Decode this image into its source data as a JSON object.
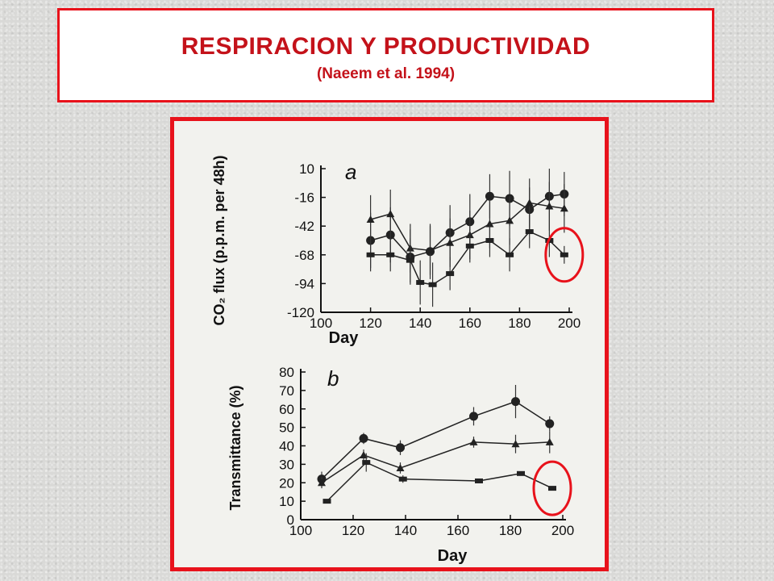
{
  "header": {
    "title": "RESPIRACION Y PRODUCTIVIDAD",
    "subtitle": "(Naeem et al. 1994)"
  },
  "colors": {
    "accent": "#e8121b",
    "title_text": "#c4121a"
  },
  "chart_data": [
    {
      "type": "line",
      "panel_label": "a",
      "xlabel": "Day",
      "ylabel": "CO₂ flux (p.p.m. per 48h)",
      "xlim": [
        100,
        200
      ],
      "ylim": [
        -120,
        10
      ],
      "x_ticks": [
        100,
        120,
        140,
        160,
        180,
        200
      ],
      "y_ticks": [
        10,
        -16,
        -42,
        -68,
        -94,
        -120
      ],
      "series": [
        {
          "marker": "circle",
          "x": [
            120,
            128,
            136,
            144,
            152,
            160,
            168,
            176,
            184,
            192,
            198
          ],
          "y": [
            -55,
            -50,
            -70,
            -65,
            -48,
            -38,
            -15,
            -17,
            -27,
            -15,
            -13
          ],
          "err": [
            25,
            25,
            25,
            25,
            25,
            25,
            20,
            25,
            20,
            25,
            20
          ]
        },
        {
          "marker": "triangle",
          "x": [
            120,
            128,
            136,
            144,
            152,
            160,
            168,
            176,
            184,
            192,
            198
          ],
          "y": [
            -36,
            -31,
            -62,
            -64,
            -57,
            -50,
            -40,
            -37,
            -21,
            -24,
            -26
          ],
          "err": [
            22,
            22,
            22,
            22,
            22,
            22,
            22,
            22,
            22,
            22,
            22
          ]
        },
        {
          "marker": "square",
          "x": [
            120,
            128,
            136,
            140,
            145,
            152,
            160,
            168,
            176,
            184,
            192,
            198
          ],
          "y": [
            -68,
            -68,
            -73,
            -93,
            -95,
            -85,
            -60,
            -55,
            -68,
            -47,
            -55,
            -68
          ],
          "err": [
            15,
            15,
            20,
            20,
            20,
            15,
            15,
            15,
            15,
            15,
            15,
            8
          ]
        }
      ],
      "annotation": {
        "type": "circle",
        "x": 198,
        "y": -68
      }
    },
    {
      "type": "line",
      "panel_label": "b",
      "xlabel": "Day",
      "ylabel": "Transmittance (%)",
      "xlim": [
        100,
        200
      ],
      "ylim": [
        0,
        80
      ],
      "x_ticks": [
        100,
        120,
        140,
        160,
        180,
        200
      ],
      "y_ticks": [
        0,
        10,
        20,
        30,
        40,
        50,
        60,
        70,
        80
      ],
      "series": [
        {
          "marker": "circle",
          "x": [
            108,
            124,
            138,
            166,
            182,
            195
          ],
          "y": [
            22,
            44,
            39,
            56,
            64,
            52
          ],
          "err": [
            4,
            3,
            4,
            5,
            9,
            4
          ]
        },
        {
          "marker": "triangle",
          "x": [
            108,
            124,
            138,
            166,
            182,
            195
          ],
          "y": [
            20,
            35,
            28,
            42,
            41,
            42
          ],
          "err": [
            3,
            3,
            3,
            3,
            5,
            6
          ]
        },
        {
          "marker": "square",
          "x": [
            110,
            125,
            139,
            168,
            184,
            196
          ],
          "y": [
            10,
            31,
            22,
            21,
            25,
            17
          ],
          "err": [
            0,
            5,
            2,
            0,
            0,
            0
          ]
        }
      ],
      "annotation": {
        "type": "circle",
        "x": 196,
        "y": 17
      }
    }
  ]
}
